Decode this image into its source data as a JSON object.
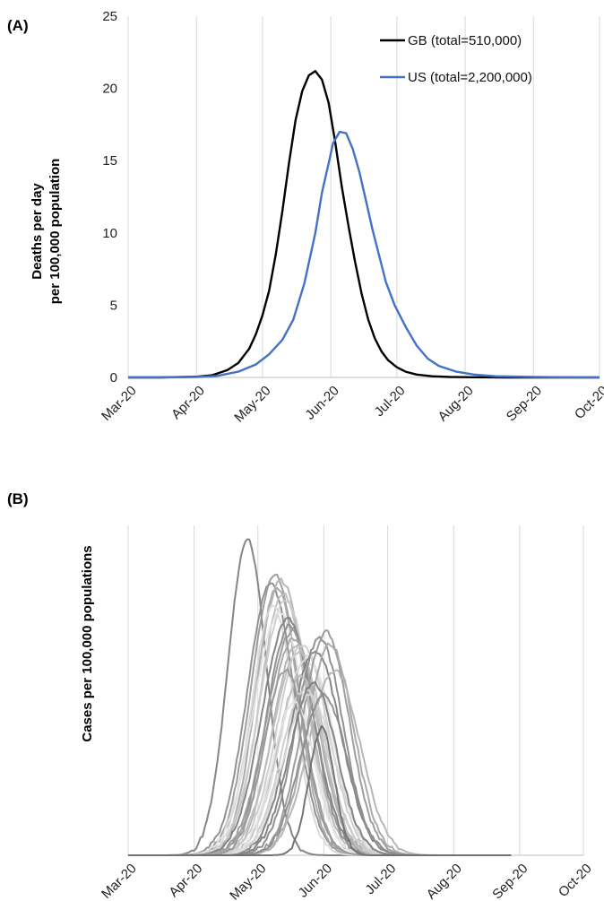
{
  "chart_data": [
    {
      "panel_label": "(A)",
      "type": "line",
      "ylabel_line1": "Deaths per day",
      "ylabel_line2": "per 100,000 population",
      "x_ticks": [
        "Mar-20",
        "Apr-20",
        "May-20",
        "Jun-20",
        "Jul-20",
        "Aug-20",
        "Sep-20",
        "Oct-20"
      ],
      "y_ticks": [
        "0",
        "5",
        "10",
        "15",
        "20",
        "25"
      ],
      "ylim": [
        0,
        25
      ],
      "grid": "vertical",
      "legend": "top-right",
      "series": [
        {
          "name": "GB (total=510,000)",
          "color": "#000000",
          "x": [
            "2020-03-01",
            "2020-03-15",
            "2020-04-01",
            "2020-04-08",
            "2020-04-15",
            "2020-04-20",
            "2020-04-25",
            "2020-04-28",
            "2020-05-01",
            "2020-05-04",
            "2020-05-07",
            "2020-05-10",
            "2020-05-13",
            "2020-05-16",
            "2020-05-19",
            "2020-05-22",
            "2020-05-25",
            "2020-05-28",
            "2020-05-31",
            "2020-06-03",
            "2020-06-06",
            "2020-06-09",
            "2020-06-12",
            "2020-06-15",
            "2020-06-18",
            "2020-06-21",
            "2020-06-24",
            "2020-06-27",
            "2020-07-01",
            "2020-07-05",
            "2020-07-10",
            "2020-07-17",
            "2020-07-25",
            "2020-08-05",
            "2020-08-20",
            "2020-09-15",
            "2020-10-01"
          ],
          "values": [
            0,
            0,
            0.05,
            0.15,
            0.5,
            1.0,
            2.0,
            3.0,
            4.3,
            6.0,
            8.5,
            11.5,
            14.8,
            17.8,
            19.8,
            20.9,
            21.2,
            20.6,
            19.0,
            16.3,
            13.2,
            10.5,
            8.0,
            5.8,
            4.0,
            2.7,
            1.8,
            1.2,
            0.7,
            0.4,
            0.2,
            0.08,
            0.03,
            0.01,
            0,
            0,
            0
          ]
        },
        {
          "name": "US (total=2,200,000)",
          "color": "#4472c4",
          "x": [
            "2020-03-01",
            "2020-03-15",
            "2020-04-01",
            "2020-04-10",
            "2020-04-20",
            "2020-04-28",
            "2020-05-04",
            "2020-05-10",
            "2020-05-15",
            "2020-05-20",
            "2020-05-25",
            "2020-05-28",
            "2020-05-31",
            "2020-06-02",
            "2020-06-05",
            "2020-06-08",
            "2020-06-11",
            "2020-06-14",
            "2020-06-17",
            "2020-06-20",
            "2020-06-23",
            "2020-06-26",
            "2020-06-30",
            "2020-07-05",
            "2020-07-10",
            "2020-07-15",
            "2020-07-20",
            "2020-07-28",
            "2020-08-05",
            "2020-08-15",
            "2020-09-01",
            "2020-09-15",
            "2020-10-01"
          ],
          "values": [
            0,
            0,
            0.03,
            0.1,
            0.4,
            0.9,
            1.6,
            2.6,
            4.0,
            6.5,
            10.0,
            12.8,
            14.8,
            16.2,
            17.0,
            16.9,
            15.8,
            14.2,
            12.2,
            10.2,
            8.4,
            6.6,
            5.0,
            3.5,
            2.2,
            1.3,
            0.8,
            0.4,
            0.2,
            0.08,
            0.03,
            0.01,
            0
          ]
        }
      ]
    },
    {
      "panel_label": "(B)",
      "type": "line",
      "ylabel": "Cases per 100,000 populations",
      "x_ticks": [
        "Mar-20",
        "Apr-20",
        "May-20",
        "Jun-20",
        "Jul-20",
        "Aug-20",
        "Sep-20",
        "Oct-20"
      ],
      "grid": "vertical",
      "series_colors": [
        "#7f7f7f",
        "#8c8c8c",
        "#999999",
        "#a6a6a6",
        "#b3b3b3",
        "#bfbfbf",
        "#cccccc",
        "#d9d9d9",
        "#e3e3e3"
      ],
      "series_peaks": [
        {
          "peak": "2020-04-26",
          "height": 0.99,
          "width": 9
        },
        {
          "peak": "2020-05-07",
          "height": 0.85,
          "width": 11
        },
        {
          "peak": "2020-05-09",
          "height": 0.88,
          "width": 11
        },
        {
          "peak": "2020-05-10",
          "height": 0.84,
          "width": 10
        },
        {
          "peak": "2020-05-12",
          "height": 0.86,
          "width": 12
        },
        {
          "peak": "2020-05-13",
          "height": 0.82,
          "width": 11
        },
        {
          "peak": "2020-05-14",
          "height": 0.8,
          "width": 12
        },
        {
          "peak": "2020-05-08",
          "height": 0.78,
          "width": 10
        },
        {
          "peak": "2020-05-11",
          "height": 0.76,
          "width": 12
        },
        {
          "peak": "2020-05-15",
          "height": 0.74,
          "width": 12
        },
        {
          "peak": "2020-05-16",
          "height": 0.72,
          "width": 11
        },
        {
          "peak": "2020-05-17",
          "height": 0.7,
          "width": 12
        },
        {
          "peak": "2020-05-18",
          "height": 0.68,
          "width": 12
        },
        {
          "peak": "2020-05-19",
          "height": 0.66,
          "width": 11
        },
        {
          "peak": "2020-05-20",
          "height": 0.64,
          "width": 12
        },
        {
          "peak": "2020-05-22",
          "height": 0.66,
          "width": 12
        },
        {
          "peak": "2020-05-24",
          "height": 0.62,
          "width": 12
        },
        {
          "peak": "2020-05-26",
          "height": 0.6,
          "width": 11
        },
        {
          "peak": "2020-05-28",
          "height": 0.64,
          "width": 12
        },
        {
          "peak": "2020-05-30",
          "height": 0.68,
          "width": 11
        },
        {
          "peak": "2020-06-02",
          "height": 0.7,
          "width": 11
        },
        {
          "peak": "2020-06-04",
          "height": 0.66,
          "width": 11
        },
        {
          "peak": "2020-06-06",
          "height": 0.58,
          "width": 12
        },
        {
          "peak": "2020-05-21",
          "height": 0.56,
          "width": 11
        },
        {
          "peak": "2020-05-23",
          "height": 0.52,
          "width": 11
        },
        {
          "peak": "2020-05-25",
          "height": 0.5,
          "width": 12
        },
        {
          "peak": "2020-05-18",
          "height": 0.48,
          "width": 10
        },
        {
          "peak": "2020-05-27",
          "height": 0.54,
          "width": 11
        },
        {
          "peak": "2020-06-01",
          "height": 0.5,
          "width": 11
        },
        {
          "peak": "2020-05-14",
          "height": 0.58,
          "width": 10
        }
      ],
      "extra_series": [
        {
          "peak": "2020-05-31",
          "height": 0.4,
          "width": 6
        }
      ]
    }
  ]
}
